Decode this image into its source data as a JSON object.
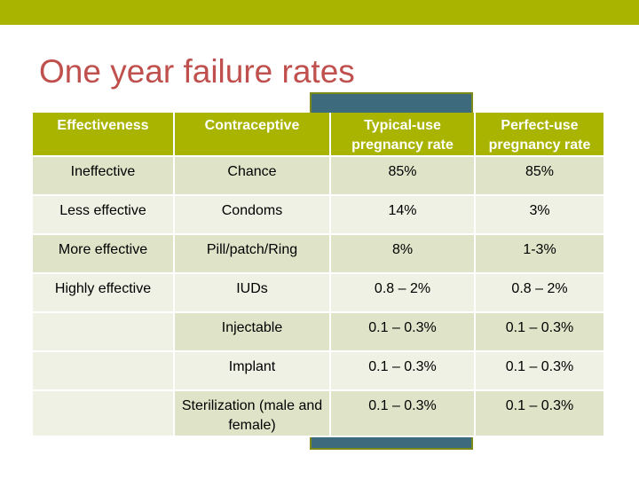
{
  "title": "One year failure rates",
  "colors": {
    "top_bar": "#a8b400",
    "title": "#c0504d",
    "header_bg": "#a8b400",
    "highlight_frame": "#3e6a7d",
    "row_odd": "#dfe4c8",
    "row_even": "#eef1e3"
  },
  "table": {
    "headers": [
      "Effectiveness",
      "Contraceptive",
      "Typical-use pregnancy rate",
      "Perfect-use pregnancy rate"
    ],
    "rows": [
      {
        "effectiveness": "Ineffective",
        "contraceptive": "Chance",
        "typical": "85%",
        "perfect": "85%"
      },
      {
        "effectiveness": "Less effective",
        "contraceptive": "Condoms",
        "typical": "14%",
        "perfect": "3%"
      },
      {
        "effectiveness": "More effective",
        "contraceptive": "Pill/patch/Ring",
        "typical": "8%",
        "perfect": "1-3%"
      },
      {
        "effectiveness": "Highly effective",
        "contraceptive": "IUDs",
        "typical": "0.8 – 2%",
        "perfect": "0.8 – 2%"
      },
      {
        "effectiveness": "",
        "contraceptive": "Injectable",
        "typical": "0.1 – 0.3%",
        "perfect": "0.1 – 0.3%"
      },
      {
        "effectiveness": "",
        "contraceptive": "Implant",
        "typical": "0.1 – 0.3%",
        "perfect": "0.1 – 0.3%"
      },
      {
        "effectiveness": "",
        "contraceptive": "Sterilization (male and female)",
        "typical": "0.1 – 0.3%",
        "perfect": "0.1 – 0.3%"
      }
    ]
  }
}
